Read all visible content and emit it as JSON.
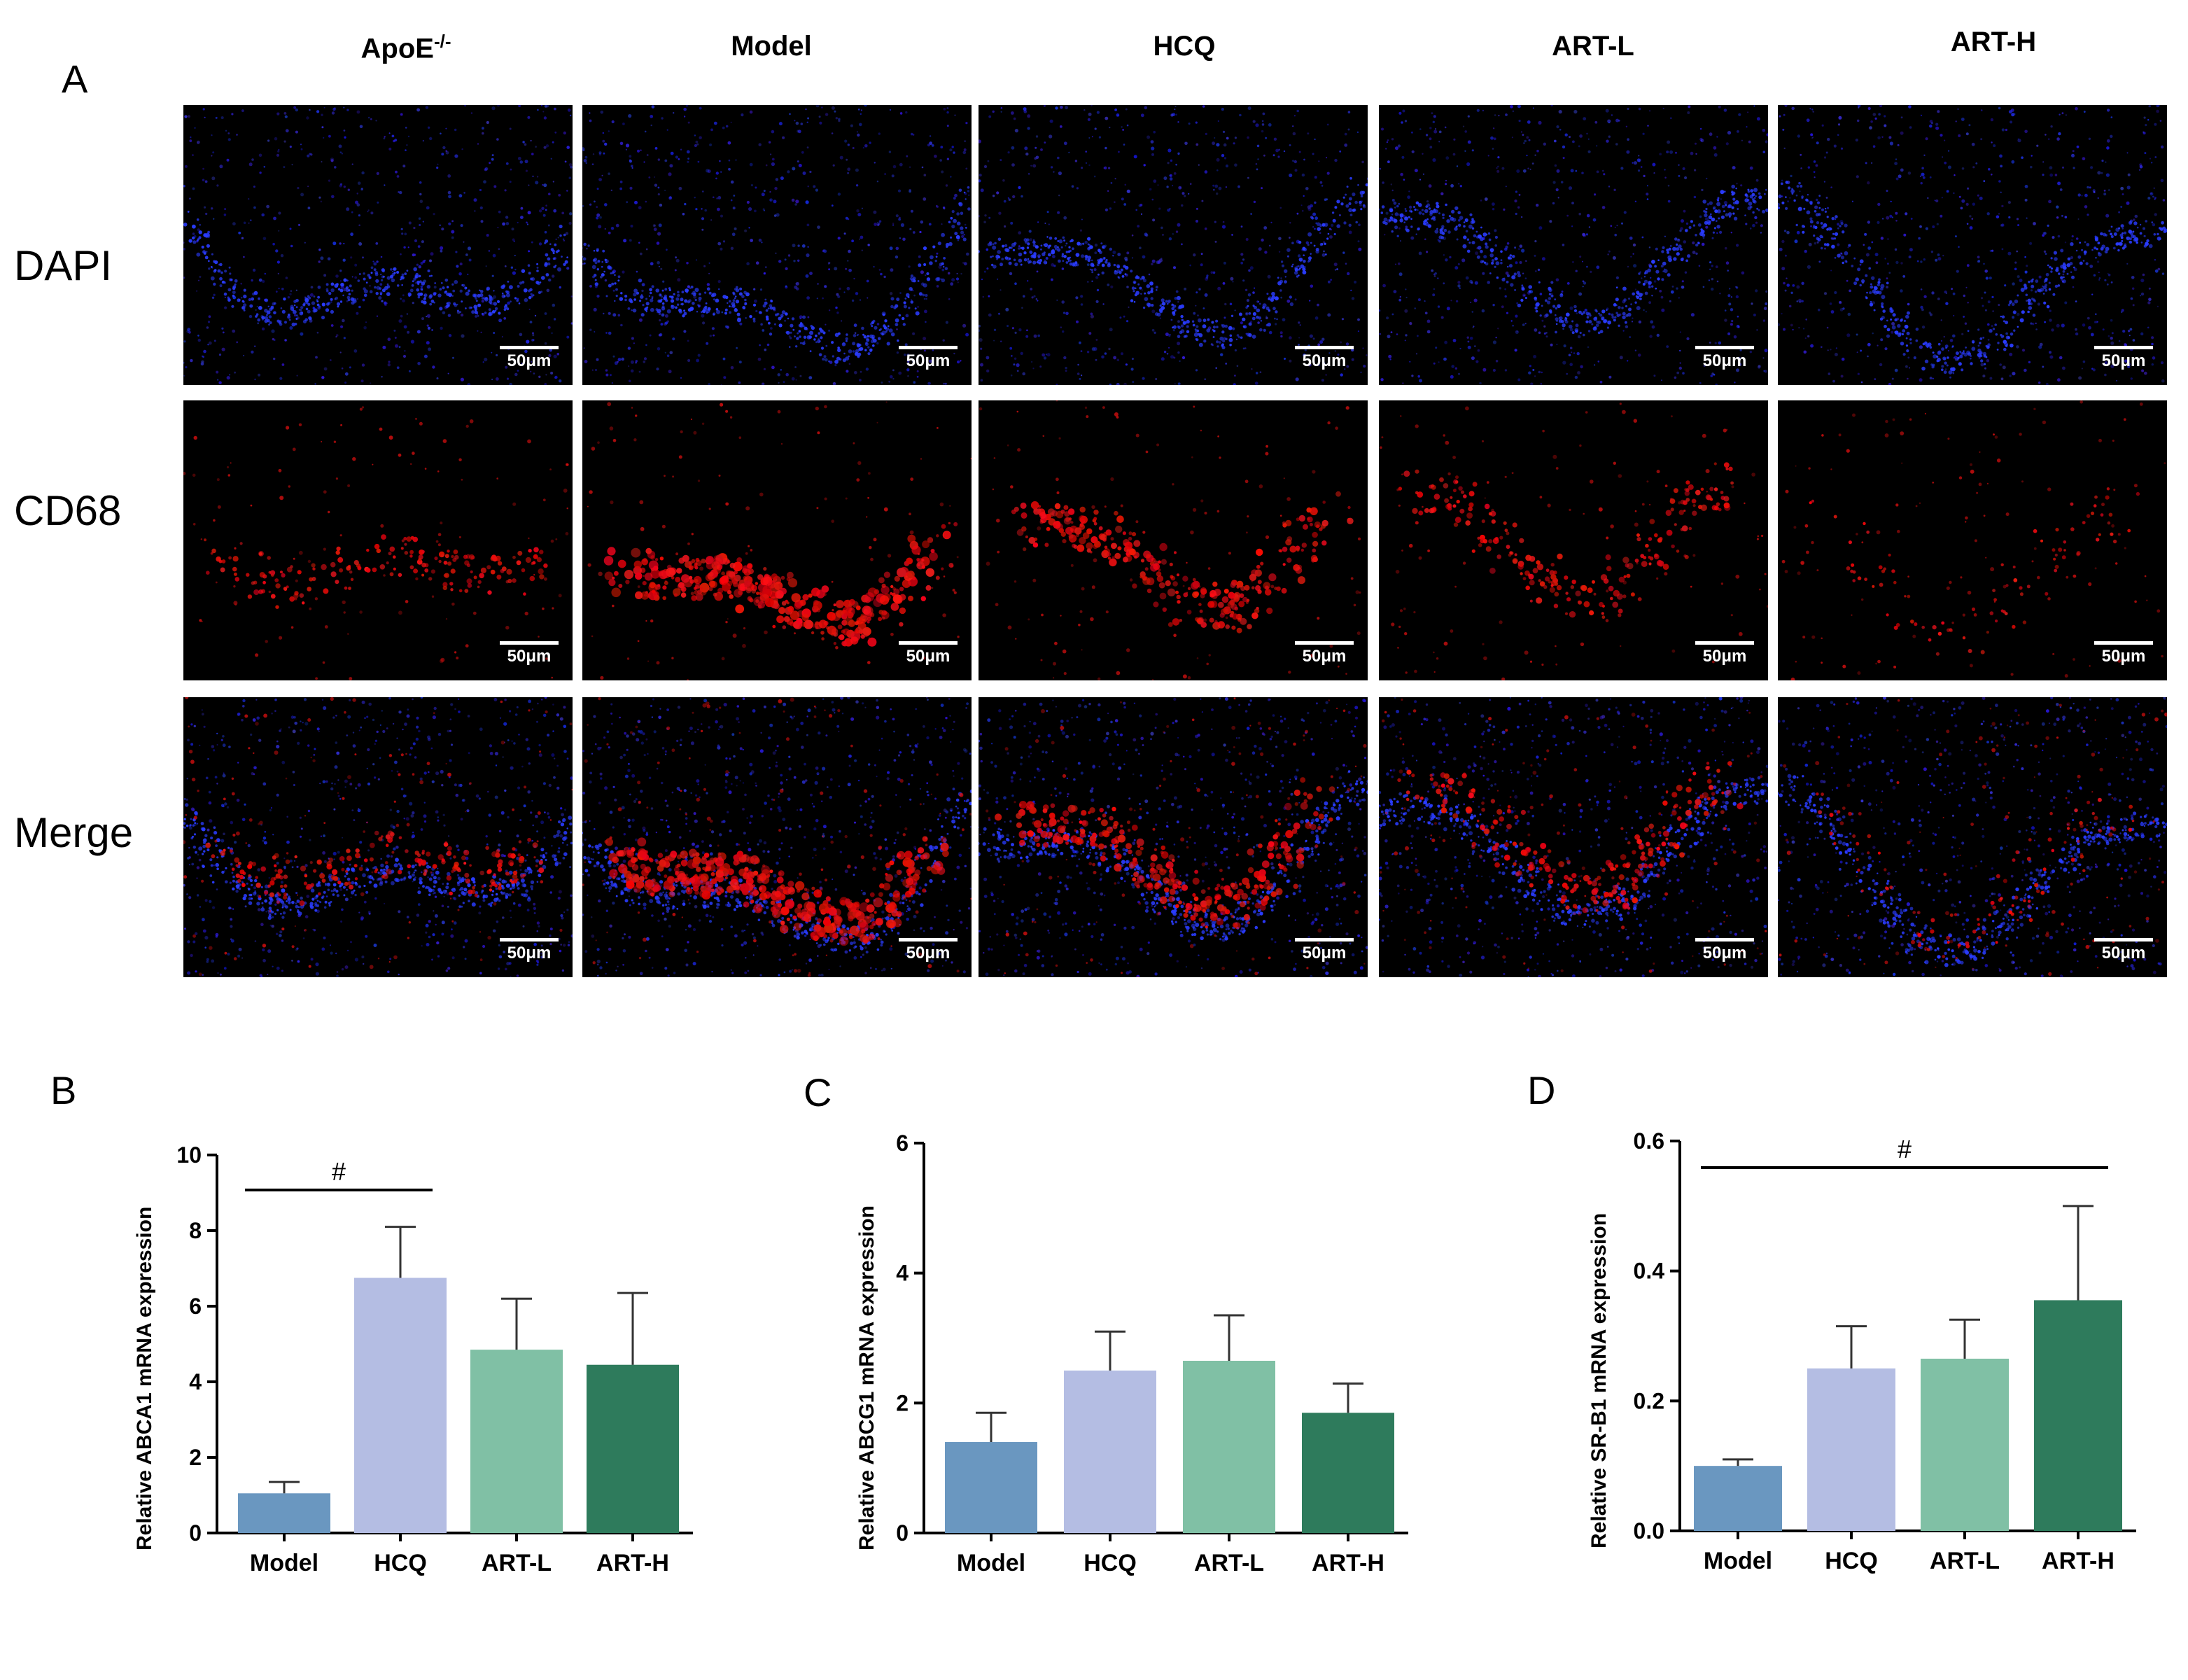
{
  "panel_a": {
    "letter": "A",
    "columns": [
      "ApoE",
      "Model",
      "HCQ",
      "ART-L",
      "ART-H"
    ],
    "apoe_superscript": "-/-",
    "rows": [
      "DAPI",
      "CD68",
      "Merge"
    ],
    "scale_bar": "50μm"
  },
  "chart_data": [
    {
      "panel": "B",
      "type": "bar",
      "title": "",
      "categories": [
        "Model",
        "HCQ",
        "ART-L",
        "ART-H"
      ],
      "values": [
        1.05,
        6.75,
        4.85,
        4.45
      ],
      "errors": [
        0.3,
        1.35,
        1.35,
        1.9
      ],
      "colors": [
        "#6a97c0",
        "#b4bde3",
        "#80c0a5",
        "#2e7b5c"
      ],
      "xlabel": "",
      "ylabel": "Relative ABCA1 mRNA expression",
      "ylim": [
        0,
        10
      ],
      "yticks": [
        "0",
        "2",
        "4",
        "6",
        "8",
        "10"
      ],
      "annotation": {
        "symbol": "#",
        "from": "Model",
        "to": "HCQ"
      }
    },
    {
      "panel": "C",
      "type": "bar",
      "title": "",
      "categories": [
        "Model",
        "HCQ",
        "ART-L",
        "ART-H"
      ],
      "values": [
        1.4,
        2.5,
        2.65,
        1.85
      ],
      "errors": [
        0.45,
        0.6,
        0.7,
        0.45
      ],
      "colors": [
        "#6a97c0",
        "#b4bde3",
        "#80c0a5",
        "#2e7b5c"
      ],
      "xlabel": "",
      "ylabel": "Relative ABCG1 mRNA expression",
      "ylim": [
        0,
        6
      ],
      "yticks": [
        "0",
        "2",
        "4",
        "6"
      ]
    },
    {
      "panel": "D",
      "type": "bar",
      "title": "",
      "categories": [
        "Model",
        "HCQ",
        "ART-L",
        "ART-H"
      ],
      "values": [
        0.1,
        0.25,
        0.265,
        0.355
      ],
      "errors": [
        0.01,
        0.065,
        0.06,
        0.145
      ],
      "colors": [
        "#6a97c0",
        "#b4bde3",
        "#80c0a5",
        "#2e7b5c"
      ],
      "xlabel": "",
      "ylabel": "Relative SR-B1 mRNA expression",
      "ylim": [
        0,
        0.6
      ],
      "yticks": [
        "0.0",
        "0.2",
        "0.4",
        "0.6"
      ],
      "annotation": {
        "symbol": "#",
        "from": "Model",
        "to": "ART-H"
      }
    }
  ]
}
